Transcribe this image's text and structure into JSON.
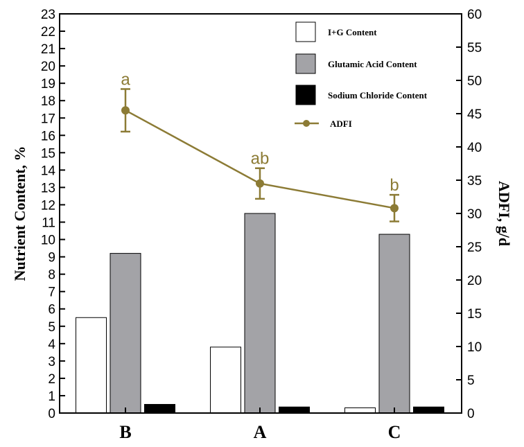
{
  "chart_data": {
    "type": "bar",
    "categories": [
      "B",
      "A",
      "C"
    ],
    "series": [
      {
        "name": "I+G Content",
        "values": [
          5.5,
          3.8,
          0.3
        ],
        "color": "#ffffff",
        "axis": "left"
      },
      {
        "name": "Glutamic Acid Content",
        "values": [
          9.2,
          11.5,
          10.3
        ],
        "color": "#a3a3a7",
        "axis": "left"
      },
      {
        "name": "Sodium Chloride Content",
        "values": [
          0.5,
          0.35,
          0.35
        ],
        "color": "#000000",
        "axis": "left"
      }
    ],
    "line_series": {
      "name": "ADFI",
      "type": "line",
      "axis": "right",
      "values": [
        45.5,
        34.5,
        30.8
      ],
      "error": [
        3.2,
        2.3,
        2.0
      ],
      "significance": [
        "a",
        "ab",
        "b"
      ],
      "color": "#8c7b35"
    },
    "ylabel": "Nutrient Content, %",
    "ylim": [
      0,
      23
    ],
    "yticks": [
      "0",
      "1",
      "2",
      "3",
      "4",
      "5",
      "6",
      "7",
      "8",
      "9",
      "10",
      "11",
      "12",
      "13",
      "14",
      "15",
      "16",
      "17",
      "18",
      "19",
      "20",
      "21",
      "22",
      "23"
    ],
    "y2label": "ADFI, g/d",
    "y2lim": [
      0,
      60
    ],
    "y2ticks": [
      "0",
      "5",
      "10",
      "15",
      "20",
      "25",
      "30",
      "35",
      "40",
      "45",
      "50",
      "55",
      "60"
    ],
    "legend_position": "top-right",
    "grid": false
  }
}
